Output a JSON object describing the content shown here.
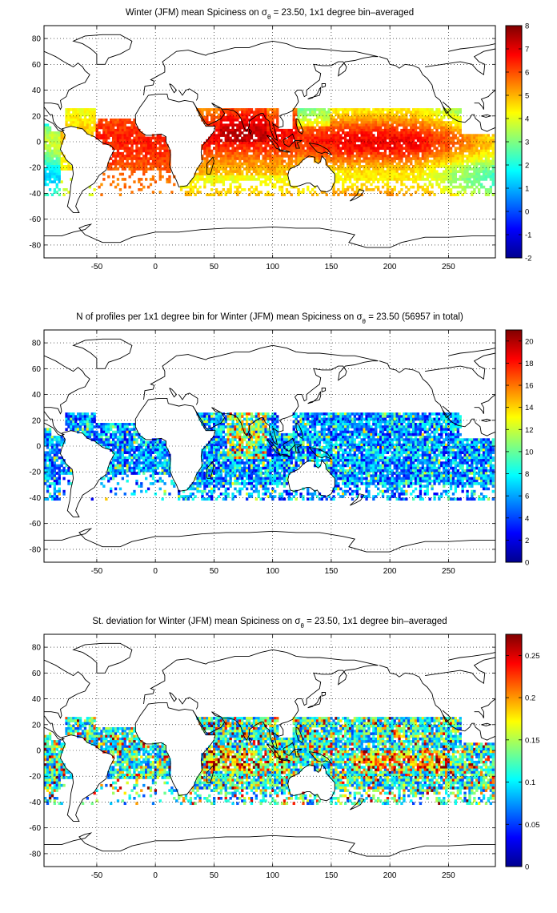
{
  "chart_data": [
    {
      "type": "heatmap",
      "title_parts": [
        "Winter (JFM) mean Spiciness on σ",
        "θ",
        " = 23.50, 1x1 degree bin–averaged"
      ],
      "xticks": [
        "-50",
        "0",
        "50",
        "100",
        "150",
        "200",
        "250"
      ],
      "yticks": [
        "80",
        "60",
        "40",
        "20",
        "0",
        "-20",
        "-40",
        "-60",
        "-80"
      ],
      "colorbar_ticks": [
        "8",
        "7",
        "6",
        "5",
        "4",
        "3",
        "2",
        "1",
        "0",
        "-1",
        "-2"
      ],
      "xlim": [
        -95,
        290
      ],
      "ylim": [
        -90,
        90
      ],
      "clim": [
        -2,
        8
      ],
      "colormap": "jet",
      "grid": true
    },
    {
      "type": "heatmap",
      "title_parts": [
        "N of profiles per 1x1 degree bin for Winter (JFM) mean Spiciness on σ",
        "θ",
        " = 23.50 (56957 in total)"
      ],
      "xticks": [
        "-50",
        "0",
        "50",
        "100",
        "150",
        "200",
        "250"
      ],
      "yticks": [
        "80",
        "60",
        "40",
        "20",
        "0",
        "-20",
        "-40",
        "-60",
        "-80"
      ],
      "colorbar_ticks": [
        "20",
        "18",
        "16",
        "14",
        "12",
        "10",
        "8",
        "6",
        "4",
        "2",
        "0"
      ],
      "xlim": [
        -95,
        290
      ],
      "ylim": [
        -90,
        90
      ],
      "clim": [
        0,
        21
      ],
      "colormap": "jet",
      "grid": true
    },
    {
      "type": "heatmap",
      "title_parts": [
        "St. deviation for Winter (JFM) mean Spiciness on σ",
        "θ",
        " = 23.50, 1x1 degree bin–averaged"
      ],
      "xticks": [
        "-50",
        "0",
        "50",
        "100",
        "150",
        "200",
        "250"
      ],
      "yticks": [
        "80",
        "60",
        "40",
        "20",
        "0",
        "-20",
        "-40",
        "-60",
        "-80"
      ],
      "colorbar_ticks": [
        "0.25",
        "0.2",
        "0.15",
        "0.1",
        "0.05",
        "0"
      ],
      "xlim": [
        -95,
        290
      ],
      "ylim": [
        -90,
        90
      ],
      "clim": [
        0,
        0.275
      ],
      "colormap": "jet",
      "grid": true
    }
  ]
}
